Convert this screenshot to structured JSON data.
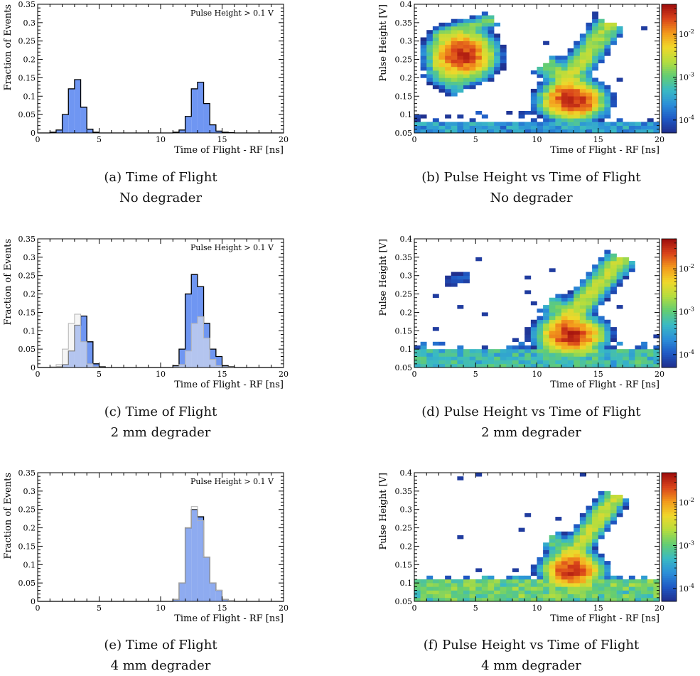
{
  "colors": {
    "blue_fill": "#6f96f2",
    "grey_fill": "#ececec",
    "grey_line": "#b4b4b4",
    "axis": "#000000",
    "colormap": [
      "#202e8c",
      "#1f58c4",
      "#2b8fd9",
      "#39b9c4",
      "#63cd72",
      "#b4dd3e",
      "#f0d82a",
      "#f39a1c",
      "#d9431a",
      "#9e0d0d"
    ]
  },
  "chart_data": [
    {
      "id": "a",
      "type": "bar",
      "caption_lines": [
        "(a) Time of Flight",
        "No degrader"
      ],
      "annotation": "Pulse Height > 0.1 V",
      "xlabel": "Time of Flight - RF [ns]",
      "ylabel": "Fraction of Events",
      "xlim": [
        0,
        20
      ],
      "ylim": [
        0,
        0.35
      ],
      "xticks": [
        "0",
        "5",
        "10",
        "15",
        "20"
      ],
      "yticks": [
        "0",
        "0.05",
        "0.1",
        "0.15",
        "0.2",
        "0.25",
        "0.3",
        "0.35"
      ],
      "bin_width": 0.5,
      "series": [
        {
          "values": [
            0.0,
            0.0,
            0.002,
            0.008,
            0.05,
            0.12,
            0.145,
            0.07,
            0.01,
            0.002,
            0.0,
            0.0,
            0.0,
            0.0,
            0.0,
            0.0,
            0.0,
            0.0,
            0.0,
            0.0,
            0.0,
            0.0,
            0.002,
            0.008,
            0.045,
            0.12,
            0.138,
            0.08,
            0.022,
            0.005,
            0.002,
            0.001,
            0.0,
            0.0,
            0.0,
            0.0,
            0.0,
            0.0,
            0.0,
            0.0
          ],
          "style": "blue"
        }
      ]
    },
    {
      "id": "b",
      "type": "heatmap",
      "caption_lines": [
        "(b) Pulse Height vs Time of Flight",
        "No degrader"
      ],
      "xlabel": "Time of Flight - RF [ns]",
      "ylabel": "Pulse Height [V]",
      "xlim": [
        0,
        20
      ],
      "ylim": [
        0.05,
        0.4
      ],
      "xticks": [
        "0",
        "5",
        "10",
        "15",
        "20"
      ],
      "yticks": [
        "0.05",
        "0.1",
        "0.15",
        "0.2",
        "0.25",
        "0.3",
        "0.35",
        "0.4"
      ],
      "colorbar": {
        "scale": "log",
        "ticks": [
          "10^-2",
          "10^-3",
          "10^-4"
        ],
        "tick_values": [
          0.01,
          0.001,
          0.0001
        ],
        "min": 5e-05,
        "max": 0.05
      },
      "dx": 0.5,
      "dy": 0.01,
      "blobs": [
        {
          "x": 3.9,
          "y": 0.262,
          "sx": 1.0,
          "sy": 0.026,
          "amp": 0.03
        },
        {
          "x": 12.9,
          "y": 0.138,
          "sx": 1.0,
          "sy": 0.02,
          "amp": 0.03
        }
      ],
      "bands": [
        {
          "x0": 1.8,
          "y0": 0.31,
          "x1": 6.5,
          "y1": 0.36,
          "w": 0.012,
          "amp": 0.0012
        },
        {
          "x0": 1.5,
          "y0": 0.23,
          "x1": 4.0,
          "y1": 0.17,
          "w": 0.02,
          "amp": 0.0008
        },
        {
          "x0": 11.8,
          "y0": 0.16,
          "x1": 16.0,
          "y1": 0.35,
          "w": 0.018,
          "amp": 0.0025
        },
        {
          "x0": 10.6,
          "y0": 0.24,
          "x1": 13.5,
          "y1": 0.17,
          "w": 0.02,
          "amp": 0.0015
        },
        {
          "x0": 11.5,
          "y0": 0.17,
          "x1": 14.5,
          "y1": 0.12,
          "w": 0.02,
          "amp": 0.004
        }
      ],
      "floor": {
        "ymax": 0.085,
        "amp": 0.0004,
        "ymax_sparse": 0.11
      },
      "noise_seed": 11
    },
    {
      "id": "c",
      "type": "bar",
      "caption_lines": [
        "(c) Time of Flight",
        "2 mm degrader"
      ],
      "annotation": "Pulse Height > 0.1 V",
      "xlabel": "Time of Flight - RF [ns]",
      "ylabel": "Fraction of Events",
      "xlim": [
        0,
        20
      ],
      "ylim": [
        0,
        0.35
      ],
      "xticks": [
        "0",
        "5",
        "10",
        "15",
        "20"
      ],
      "yticks": [
        "0",
        "0.05",
        "0.1",
        "0.15",
        "0.2",
        "0.25",
        "0.3",
        "0.35"
      ],
      "bin_width": 0.5,
      "series": [
        {
          "values": [
            0.0,
            0.0,
            0.0,
            0.002,
            0.008,
            0.045,
            0.115,
            0.14,
            0.07,
            0.01,
            0.002,
            0.0,
            0.0,
            0.0,
            0.0,
            0.0,
            0.0,
            0.0,
            0.0,
            0.0,
            0.0,
            0.0,
            0.005,
            0.05,
            0.2,
            0.253,
            0.22,
            0.12,
            0.05,
            0.03,
            0.005,
            0.002,
            0.0,
            0.0,
            0.0,
            0.0,
            0.0,
            0.0,
            0.0,
            0.0
          ],
          "style": "blue"
        },
        {
          "values": [
            0.0,
            0.0,
            0.002,
            0.008,
            0.05,
            0.12,
            0.145,
            0.07,
            0.01,
            0.002,
            0.0,
            0.0,
            0.0,
            0.0,
            0.0,
            0.0,
            0.0,
            0.0,
            0.0,
            0.0,
            0.0,
            0.0,
            0.002,
            0.008,
            0.045,
            0.12,
            0.138,
            0.08,
            0.022,
            0.005,
            0.002,
            0.001,
            0.0,
            0.0,
            0.0,
            0.0,
            0.0,
            0.0,
            0.0,
            0.0
          ],
          "style": "grey"
        }
      ]
    },
    {
      "id": "d",
      "type": "heatmap",
      "caption_lines": [
        "(d) Pulse Height vs Time of Flight",
        "2 mm degrader"
      ],
      "xlabel": "Time of Flight - RF [ns]",
      "ylabel": "Pulse Height [V]",
      "xlim": [
        0,
        20
      ],
      "ylim": [
        0.05,
        0.4
      ],
      "xticks": [
        "0",
        "5",
        "10",
        "15",
        "20"
      ],
      "yticks": [
        "0.05",
        "0.1",
        "0.15",
        "0.2",
        "0.25",
        "0.3",
        "0.35",
        "0.4"
      ],
      "colorbar": {
        "scale": "log",
        "ticks": [
          "10^-2",
          "10^-3",
          "10^-4"
        ],
        "tick_values": [
          0.01,
          0.001,
          0.0001
        ],
        "min": 5e-05,
        "max": 0.05
      },
      "dx": 0.5,
      "dy": 0.01,
      "blobs": [
        {
          "x": 12.8,
          "y": 0.138,
          "sx": 1.0,
          "sy": 0.02,
          "amp": 0.035
        }
      ],
      "bands": [
        {
          "x0": 12.0,
          "y0": 0.16,
          "x1": 17.0,
          "y1": 0.35,
          "w": 0.018,
          "amp": 0.003
        },
        {
          "x0": 11.0,
          "y0": 0.23,
          "x1": 13.0,
          "y1": 0.17,
          "w": 0.02,
          "amp": 0.001
        },
        {
          "x0": 2.5,
          "y0": 0.28,
          "x1": 4.5,
          "y1": 0.3,
          "w": 0.015,
          "amp": 0.0001
        }
      ],
      "floor": {
        "ymax": 0.1,
        "amp": 0.0008,
        "ymax_sparse": 0.12
      },
      "noise_seed": 23
    },
    {
      "id": "e",
      "type": "bar",
      "caption_lines": [
        "(e) Time of Flight",
        "4 mm degrader"
      ],
      "annotation": "Pulse Height > 0.1 V",
      "xlabel": "Time of Flight - RF [ns]",
      "ylabel": "Fraction of Events",
      "xlim": [
        0,
        20
      ],
      "ylim": [
        0,
        0.35
      ],
      "xticks": [
        "0",
        "5",
        "10",
        "15",
        "20"
      ],
      "yticks": [
        "0",
        "0.05",
        "0.1",
        "0.15",
        "0.2",
        "0.25",
        "0.3",
        "0.35"
      ],
      "bin_width": 0.5,
      "series": [
        {
          "values": [
            0.0,
            0.0,
            0.0,
            0.0,
            0.0,
            0.0,
            0.0,
            0.0,
            0.0,
            0.0,
            0.0,
            0.0,
            0.0,
            0.0,
            0.0,
            0.0,
            0.0,
            0.0,
            0.0,
            0.0,
            0.0,
            0.0,
            0.005,
            0.05,
            0.2,
            0.25,
            0.23,
            0.12,
            0.05,
            0.03,
            0.005,
            0.002,
            0.0,
            0.0,
            0.0,
            0.0,
            0.0,
            0.0,
            0.0,
            0.0
          ],
          "style": "blue"
        },
        {
          "values": [
            0.0,
            0.0,
            0.0,
            0.0,
            0.0,
            0.0,
            0.0,
            0.0,
            0.0,
            0.0,
            0.0,
            0.0,
            0.0,
            0.0,
            0.0,
            0.0,
            0.0,
            0.0,
            0.0,
            0.0,
            0.0,
            0.0,
            0.005,
            0.05,
            0.2,
            0.258,
            0.22,
            0.12,
            0.05,
            0.03,
            0.005,
            0.002,
            0.0,
            0.0,
            0.0,
            0.0,
            0.0,
            0.0,
            0.0,
            0.0
          ],
          "style": "grey"
        }
      ]
    },
    {
      "id": "f",
      "type": "heatmap",
      "caption_lines": [
        "(f) Pulse Height vs Time of Flight",
        "4 mm degrader"
      ],
      "xlabel": "Time of Flight - RF [ns]",
      "ylabel": "Pulse Height [V]",
      "xlim": [
        0,
        20
      ],
      "ylim": [
        0.05,
        0.4
      ],
      "xticks": [
        "0",
        "5",
        "10",
        "15",
        "20"
      ],
      "yticks": [
        "0.05",
        "0.1",
        "0.15",
        "0.2",
        "0.25",
        "0.3",
        "0.35",
        "0.4"
      ],
      "colorbar": {
        "scale": "log",
        "ticks": [
          "10^-2",
          "10^-3",
          "10^-4"
        ],
        "tick_values": [
          0.01,
          0.001,
          0.0001
        ],
        "min": 5e-05,
        "max": 0.05
      },
      "dx": 0.5,
      "dy": 0.01,
      "blobs": [
        {
          "x": 12.9,
          "y": 0.135,
          "sx": 0.9,
          "sy": 0.018,
          "amp": 0.035
        }
      ],
      "bands": [
        {
          "x0": 12.5,
          "y0": 0.16,
          "x1": 16.5,
          "y1": 0.34,
          "w": 0.016,
          "amp": 0.003
        },
        {
          "x0": 11.0,
          "y0": 0.22,
          "x1": 13.0,
          "y1": 0.17,
          "w": 0.018,
          "amp": 0.001
        }
      ],
      "floor": {
        "ymax": 0.11,
        "amp": 0.0015,
        "ymax_sparse": 0.12
      },
      "noise_seed": 37
    }
  ]
}
